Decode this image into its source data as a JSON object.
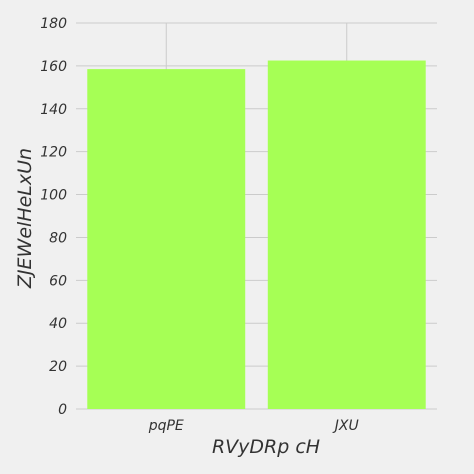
{
  "chart_data": {
    "type": "bar",
    "categories": [
      "pqPE",
      "JXU"
    ],
    "values": [
      158.5,
      162.5
    ],
    "xlabel": "RVyDRp cH",
    "ylabel": "ZJEWelHeLxUn",
    "ylim": [
      0,
      180
    ],
    "yticks": [
      0,
      20,
      40,
      60,
      80,
      100,
      120,
      140,
      160,
      180
    ],
    "grid": true
  },
  "colors": {
    "background": "#f0f0f0",
    "bar": "#a6ff55",
    "grid": "#cbcbcb",
    "text": "#333333"
  }
}
